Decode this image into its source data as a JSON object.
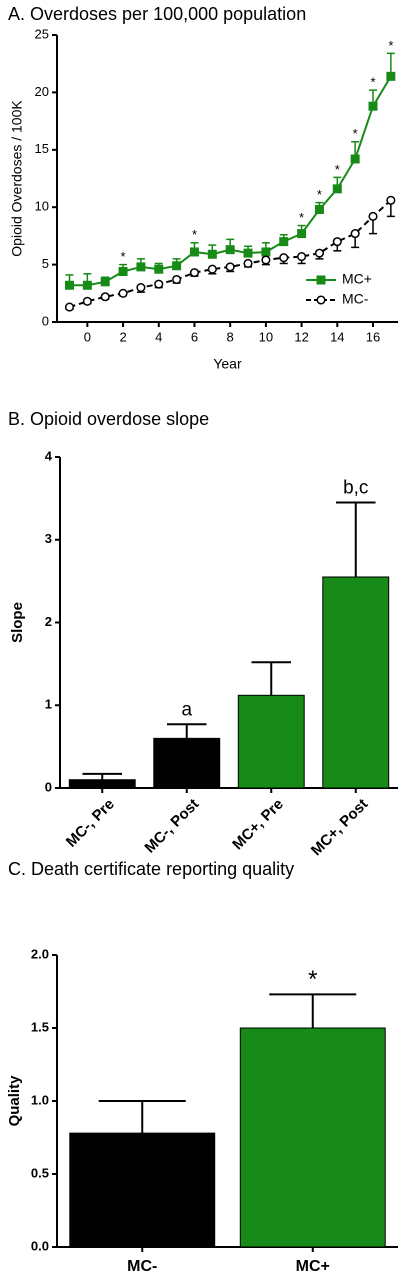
{
  "chart_data": [
    {
      "type": "line",
      "title": "A. Overdoses per 100,000 population",
      "xlabel": "Year",
      "ylabel": "Opioid Overdoses / 100K",
      "x": [
        -1,
        0,
        1,
        2,
        3,
        4,
        5,
        6,
        7,
        8,
        9,
        10,
        11,
        12,
        13,
        14,
        15,
        16,
        17
      ],
      "series": [
        {
          "name": "MC+",
          "color": "#178a17",
          "marker": "square",
          "dashed": false,
          "error_direction": "up",
          "values": [
            3.2,
            3.2,
            3.5,
            4.4,
            4.8,
            4.6,
            4.9,
            6.1,
            5.9,
            6.3,
            6.0,
            6.1,
            7.0,
            7.7,
            9.8,
            11.6,
            14.2,
            18.8,
            21.4
          ],
          "errors": [
            0.9,
            1.0,
            0.4,
            0.6,
            0.7,
            0.5,
            0.6,
            0.8,
            0.8,
            0.9,
            0.6,
            0.8,
            0.6,
            0.7,
            0.6,
            1.0,
            1.5,
            1.4,
            2.0
          ]
        },
        {
          "name": "MC-",
          "color": "#000000",
          "marker": "circle",
          "dashed": true,
          "error_direction": "down",
          "values": [
            1.3,
            1.8,
            2.2,
            2.5,
            3.0,
            3.3,
            3.7,
            4.3,
            4.6,
            4.8,
            5.1,
            5.4,
            5.6,
            5.7,
            6.0,
            7.0,
            7.7,
            9.2,
            10.6
          ],
          "errors": [
            0.2,
            0.2,
            0.2,
            0.2,
            0.4,
            0.3,
            0.3,
            0.3,
            0.4,
            0.4,
            0.3,
            0.4,
            0.5,
            0.6,
            0.5,
            0.8,
            1.2,
            1.5,
            1.4
          ]
        }
      ],
      "annotations": [
        {
          "text": "*",
          "x": 2
        },
        {
          "text": "*",
          "x": 6
        },
        {
          "text": "*",
          "x": 12
        },
        {
          "text": "*",
          "x": 13
        },
        {
          "text": "*",
          "x": 14
        },
        {
          "text": "*",
          "x": 15
        },
        {
          "text": "*",
          "x": 16
        },
        {
          "text": "*",
          "x": 17
        }
      ],
      "xlim": [
        -1.7,
        17.4
      ],
      "xticks": [
        0,
        2,
        4,
        6,
        8,
        10,
        12,
        14,
        16
      ],
      "ylim": [
        0,
        25
      ],
      "yticks": [
        0,
        5,
        10,
        15,
        20,
        25
      ],
      "legend": "lower right"
    },
    {
      "type": "bar",
      "title": "B. Opioid overdose slope",
      "ylabel": "Slope",
      "categories": [
        "MC-, Pre",
        "MC-, Post",
        "MC+, Pre",
        "MC+, Post"
      ],
      "values": [
        0.1,
        0.6,
        1.12,
        2.55
      ],
      "errors": [
        0.07,
        0.17,
        0.4,
        0.9
      ],
      "colors": [
        "#000000",
        "#000000",
        "#178a17",
        "#178a17"
      ],
      "bar_labels": [
        null,
        "a",
        null,
        "b,c"
      ],
      "ylim": [
        0,
        4
      ],
      "yticks": [
        0,
        1,
        2,
        3,
        4
      ]
    },
    {
      "type": "bar",
      "title": "C. Death certificate reporting quality",
      "ylabel": "Quality",
      "categories": [
        "MC-",
        "MC+"
      ],
      "values": [
        0.78,
        1.5
      ],
      "errors": [
        0.22,
        0.23
      ],
      "colors": [
        "#000000",
        "#178a17"
      ],
      "bar_labels": [
        null,
        "*"
      ],
      "ylim": [
        0,
        2
      ],
      "yticks": [
        {
          "value": 0,
          "label": "0.0"
        },
        0.5,
        {
          "value": 1,
          "label": "1.0"
        },
        1.5,
        {
          "value": 2,
          "label": "2.0"
        }
      ]
    }
  ]
}
